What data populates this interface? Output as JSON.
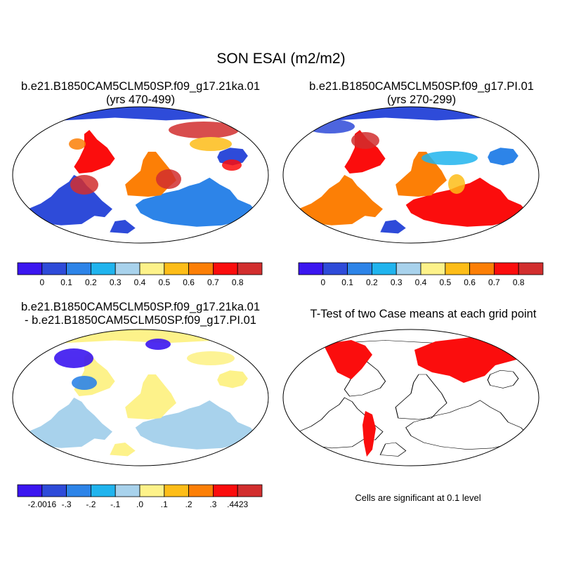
{
  "title": "SON ESAI (m2/m2)",
  "panels": [
    {
      "title_line1": "b.e21.B1850CAM5CLM50SP.f09_g17.21ka.01",
      "title_line2": "(yrs 470-499)",
      "type": "mean-field"
    },
    {
      "title_line1": "b.e21.B1850CAM5CLM50SP.f09_g17.PI.01",
      "title_line2": "(yrs 270-299)",
      "type": "mean-field"
    },
    {
      "title_line1": "b.e21.B1850CAM5CLM50SP.f09_g17.21ka.01",
      "title_line2": "- b.e21.B1850CAM5CLM50SP.f09_g17.PI.01",
      "type": "difference"
    },
    {
      "title_line1": "T-Test of two Case means at each grid point",
      "type": "significance",
      "note": "Cells are significant at 0.1 level"
    }
  ],
  "colorbars": {
    "mean": {
      "colors": [
        "#3b16f0",
        "#2e4bd9",
        "#2d84e8",
        "#20b4ee",
        "#a8d2ec",
        "#fdf28a",
        "#fdbd18",
        "#fc7f06",
        "#fb0d0d",
        "#d22e2e"
      ],
      "ticks": [
        "0",
        "0.1",
        "0.2",
        "0.3",
        "0.4",
        "0.5",
        "0.6",
        "0.7",
        "0.8"
      ]
    },
    "diff": {
      "colors": [
        "#3b16f0",
        "#2e4bd9",
        "#2d84e8",
        "#20b4ee",
        "#a8d2ec",
        "#fdf28a",
        "#fdbd18",
        "#fc7f06",
        "#fb0d0d",
        "#d22e2e"
      ],
      "ticks": [
        "-2.0016",
        "-.3",
        "-.2",
        "-.1",
        ".0",
        ".1",
        ".2",
        ".3",
        ".4423"
      ]
    }
  }
}
